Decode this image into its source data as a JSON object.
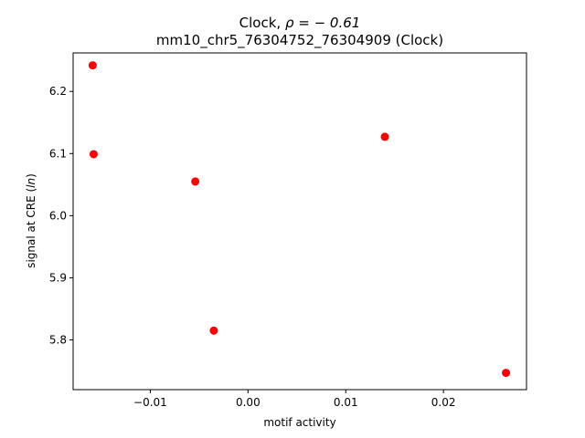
{
  "chart_data": {
    "type": "scatter",
    "title_line1_prefix": "Clock, ",
    "title_line1_rho": "ρ = − 0.61",
    "title_line2": "mm10_chr5_76304752_76304909 (Clock)",
    "xlabel": "motif activity",
    "ylabel_prefix": "signal at CRE (",
    "ylabel_italic": "ln",
    "ylabel_suffix": ")",
    "xlim": [
      -0.0179,
      0.0285
    ],
    "ylim": [
      5.72,
      6.262
    ],
    "xticks": [
      -0.01,
      0.0,
      0.01,
      0.02
    ],
    "xtick_labels": [
      "−0.01",
      "0.00",
      "0.01",
      "0.02"
    ],
    "yticks": [
      5.8,
      5.9,
      6.0,
      6.1,
      6.2
    ],
    "ytick_labels": [
      "5.8",
      "5.9",
      "6.0",
      "6.1",
      "6.2"
    ],
    "point_color": "#ff0000",
    "points": [
      {
        "x": -0.0159,
        "y": 6.242
      },
      {
        "x": -0.0158,
        "y": 6.099
      },
      {
        "x": -0.0054,
        "y": 6.055
      },
      {
        "x": -0.0035,
        "y": 5.815
      },
      {
        "x": 0.014,
        "y": 6.127
      },
      {
        "x": 0.0264,
        "y": 5.747
      }
    ]
  }
}
